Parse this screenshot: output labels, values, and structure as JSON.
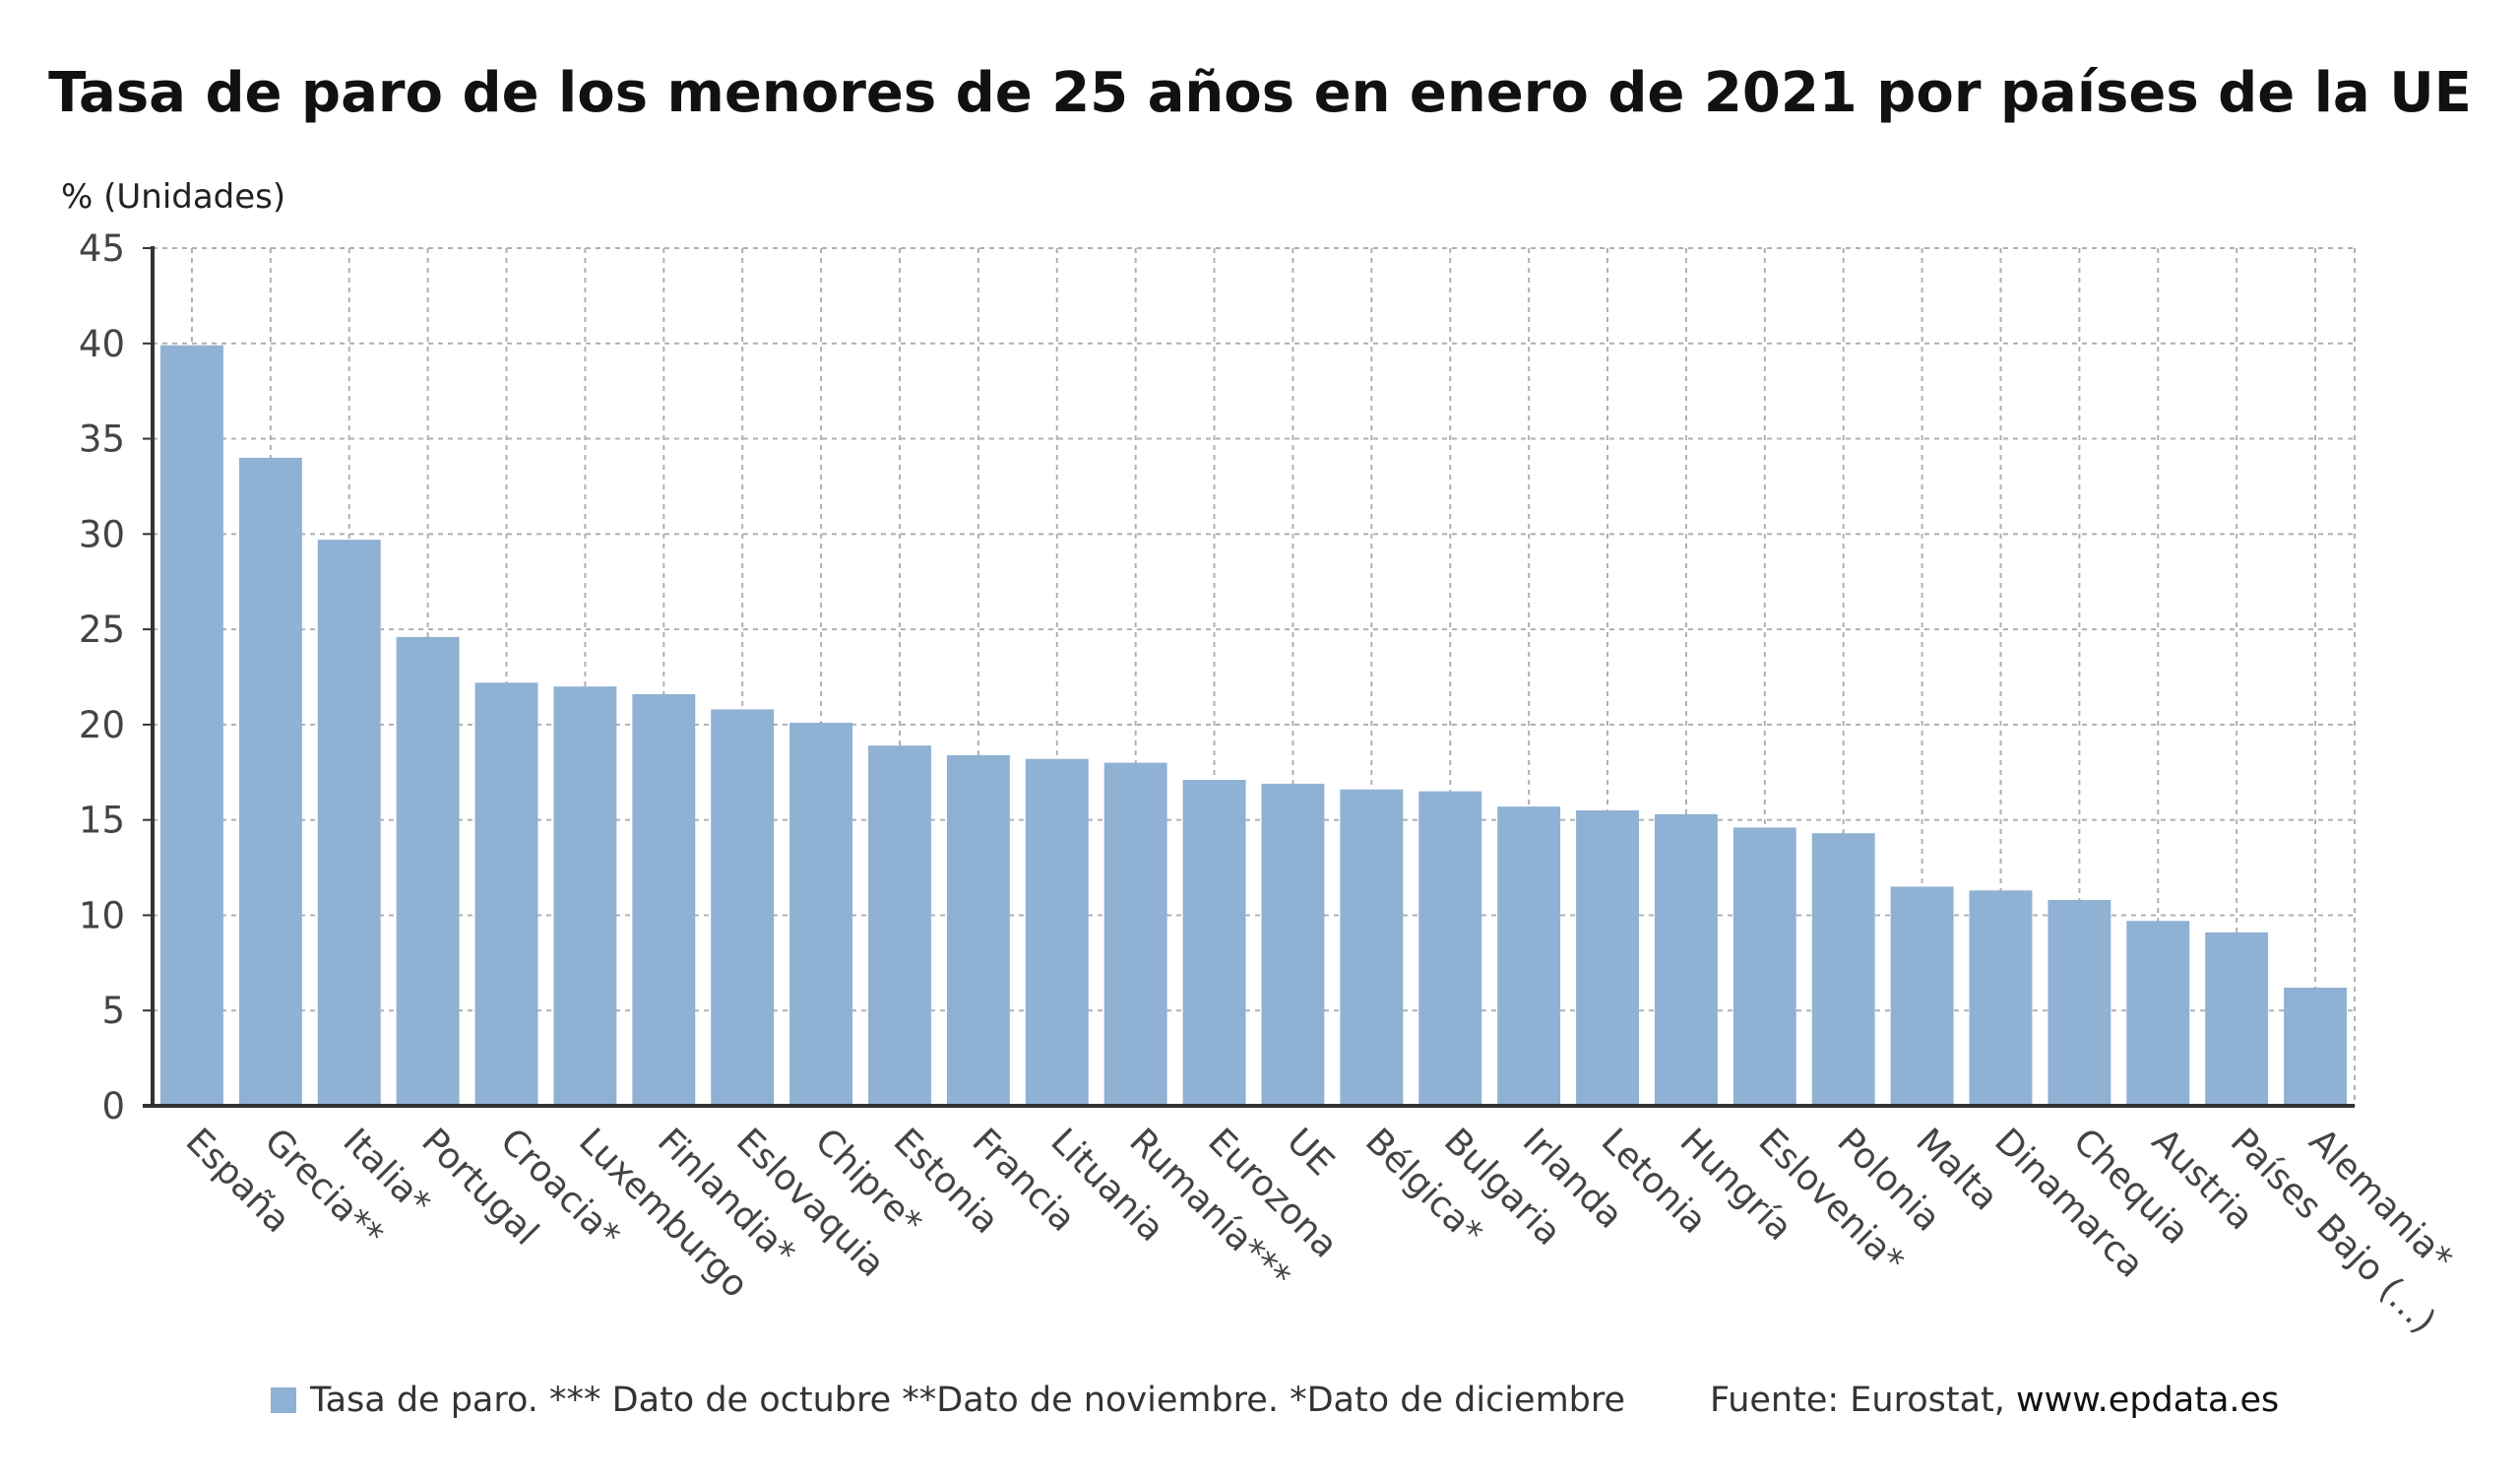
{
  "title": "Tasa de paro de los menores de 25 años en enero de 2021 por países de la UE",
  "colors": {
    "bar": "#8fb1d3",
    "grid": "#b0b0b0",
    "axis": "#333333",
    "text": "#444444"
  },
  "legend": {
    "label": "Tasa de paro. *** Dato de octubre **Dato de noviembre. *Dato de diciembre"
  },
  "source": {
    "prefix": "Fuente: Eurostat, ",
    "url": "www.epdata.es"
  },
  "chart_data": {
    "type": "bar",
    "title": "Tasa de paro de los menores de 25 años en enero de 2021 por países de la UE",
    "ylabel": "% (Unidades)",
    "xlabel": "",
    "ylim": [
      0,
      45
    ],
    "yticks": [
      0,
      5,
      10,
      15,
      20,
      25,
      30,
      35,
      40,
      45
    ],
    "grid": true,
    "legend_position": "bottom",
    "categories": [
      "España",
      "Grecia**",
      "Italia*",
      "Portugal",
      "Croacia*",
      "Luxemburgo",
      "Finlandia*",
      "Eslovaquia",
      "Chipre*",
      "Estonia",
      "Francia",
      "Lituania",
      "Rumanía***",
      "Eurozona",
      "UE",
      "Bélgica*",
      "Bulgaria",
      "Irlanda",
      "Letonia",
      "Hungría",
      "Eslovenia*",
      "Polonia",
      "Malta",
      "Dinamarca",
      "Chequia",
      "Austria",
      "Países Bajo (...)",
      "Alemania*"
    ],
    "series": [
      {
        "name": "Tasa de paro. *** Dato de octubre **Dato de noviembre. *Dato de diciembre",
        "values": [
          39.9,
          34.0,
          29.7,
          24.6,
          22.2,
          22.0,
          21.6,
          20.8,
          20.1,
          18.9,
          18.4,
          18.2,
          18.0,
          17.1,
          16.9,
          16.6,
          16.5,
          15.7,
          15.5,
          15.3,
          14.6,
          14.3,
          11.5,
          11.3,
          10.8,
          9.7,
          9.1,
          6.2
        ]
      }
    ]
  }
}
